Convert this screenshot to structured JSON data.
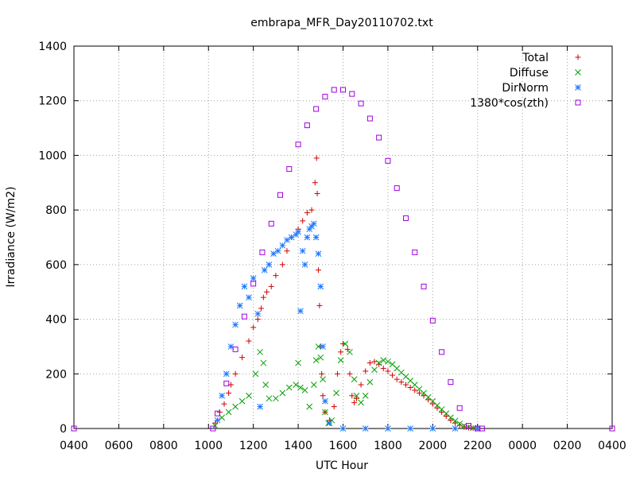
{
  "chart_data": {
    "type": "scatter",
    "title": "embrapa_MFR_Day20110702.txt",
    "xlabel": "UTC Hour",
    "ylabel": "Irradiance (W/m2)",
    "xlim": [
      4,
      28
    ],
    "ylim": [
      0,
      1400
    ],
    "x_ticks": [
      {
        "value": 4,
        "label": "0400"
      },
      {
        "value": 6,
        "label": "0600"
      },
      {
        "value": 8,
        "label": "0800"
      },
      {
        "value": 10,
        "label": "1000"
      },
      {
        "value": 12,
        "label": "1200"
      },
      {
        "value": 14,
        "label": "1400"
      },
      {
        "value": 16,
        "label": "1600"
      },
      {
        "value": 18,
        "label": "1800"
      },
      {
        "value": 20,
        "label": "2000"
      },
      {
        "value": 22,
        "label": "2200"
      },
      {
        "value": 24,
        "label": "0000"
      },
      {
        "value": 26,
        "label": "0200"
      },
      {
        "value": 28,
        "label": "0400"
      }
    ],
    "y_ticks": [
      0,
      200,
      400,
      600,
      800,
      1000,
      1200,
      1400
    ],
    "grid": true,
    "legend_position": "top-right",
    "series": [
      {
        "name": "Total",
        "color": "#d40000",
        "marker": "plus",
        "x": [
          10.3,
          10.5,
          10.7,
          10.9,
          11.0,
          11.2,
          11.5,
          11.8,
          12.0,
          12.2,
          12.35,
          12.45,
          12.6,
          12.8,
          13.0,
          13.3,
          13.5,
          13.7,
          14.0,
          14.2,
          14.4,
          14.6,
          14.75,
          14.82,
          14.85,
          14.9,
          14.95,
          15.0,
          15.05,
          15.1,
          15.2,
          15.4,
          15.6,
          15.75,
          15.9,
          16.0,
          16.2,
          16.3,
          16.4,
          16.5,
          16.6,
          16.8,
          17.0,
          17.2,
          17.4,
          17.6,
          17.8,
          18.0,
          18.2,
          18.4,
          18.6,
          18.8,
          19.0,
          19.2,
          19.4,
          19.6,
          19.8,
          20.0,
          20.2,
          20.4,
          20.6,
          20.8,
          21.0,
          21.2,
          21.4,
          21.6,
          21.8,
          22.0
        ],
        "y": [
          20,
          60,
          90,
          130,
          160,
          200,
          260,
          320,
          370,
          400,
          440,
          480,
          500,
          520,
          560,
          600,
          650,
          700,
          730,
          760,
          790,
          800,
          900,
          990,
          860,
          580,
          450,
          300,
          200,
          120,
          60,
          30,
          80,
          200,
          280,
          310,
          290,
          200,
          120,
          95,
          110,
          160,
          210,
          240,
          245,
          235,
          220,
          210,
          195,
          180,
          170,
          160,
          150,
          140,
          130,
          120,
          105,
          90,
          75,
          60,
          45,
          30,
          20,
          12,
          6,
          3,
          1,
          0
        ]
      },
      {
        "name": "Diffuse",
        "color": "#00a000",
        "marker": "cross",
        "x": [
          10.3,
          10.6,
          10.9,
          11.2,
          11.5,
          11.8,
          12.1,
          12.3,
          12.45,
          12.55,
          12.7,
          13.0,
          13.3,
          13.6,
          13.9,
          14.0,
          14.1,
          14.3,
          14.5,
          14.7,
          14.8,
          14.9,
          15.0,
          15.1,
          15.2,
          15.35,
          15.5,
          15.7,
          15.9,
          16.1,
          16.3,
          16.5,
          16.6,
          16.8,
          17.0,
          17.2,
          17.4,
          17.6,
          17.8,
          18.0,
          18.2,
          18.4,
          18.6,
          18.8,
          19.0,
          19.2,
          19.4,
          19.6,
          19.8,
          20.0,
          20.2,
          20.4,
          20.6,
          20.8,
          21.0,
          21.2,
          21.4,
          21.6,
          21.8,
          22.0
        ],
        "y": [
          10,
          40,
          60,
          80,
          100,
          120,
          200,
          280,
          240,
          160,
          110,
          110,
          130,
          150,
          160,
          240,
          150,
          140,
          80,
          160,
          250,
          300,
          260,
          180,
          60,
          20,
          30,
          130,
          250,
          310,
          280,
          180,
          120,
          95,
          120,
          170,
          215,
          240,
          250,
          245,
          235,
          220,
          205,
          190,
          175,
          160,
          145,
          130,
          115,
          100,
          85,
          70,
          55,
          40,
          28,
          18,
          10,
          5,
          2,
          0
        ]
      },
      {
        "name": "DirNorm",
        "color": "#1e78ff",
        "marker": "star",
        "x": [
          10.4,
          10.6,
          10.8,
          11.0,
          11.2,
          11.4,
          11.6,
          11.8,
          12.0,
          12.2,
          12.3,
          12.5,
          12.7,
          12.9,
          13.1,
          13.3,
          13.5,
          13.7,
          13.9,
          14.0,
          14.1,
          14.2,
          14.3,
          14.4,
          14.5,
          14.6,
          14.7,
          14.8,
          14.9,
          15.0,
          15.1,
          15.2,
          15.4,
          16.0,
          17.0,
          18.0,
          19.0,
          20.0,
          21.0,
          22.0
        ],
        "y": [
          30,
          120,
          200,
          300,
          380,
          450,
          520,
          480,
          550,
          420,
          80,
          580,
          600,
          640,
          650,
          670,
          690,
          700,
          710,
          720,
          430,
          650,
          600,
          700,
          730,
          740,
          750,
          700,
          640,
          520,
          300,
          100,
          20,
          0,
          0,
          0,
          0,
          0,
          0,
          0
        ]
      },
      {
        "name": "1380*cos(zth)",
        "color": "#a000e0",
        "marker": "square",
        "x": [
          4,
          10.2,
          10.4,
          10.8,
          11.2,
          11.6,
          12.0,
          12.4,
          12.8,
          13.2,
          13.6,
          14.0,
          14.4,
          14.8,
          15.2,
          15.6,
          16.0,
          16.4,
          16.8,
          17.2,
          17.6,
          18.0,
          18.4,
          18.8,
          19.2,
          19.6,
          20.0,
          20.4,
          20.8,
          21.2,
          21.6,
          22.0,
          22.2,
          28
        ],
        "y": [
          0,
          0,
          55,
          165,
          290,
          410,
          530,
          645,
          750,
          855,
          950,
          1040,
          1110,
          1170,
          1215,
          1240,
          1240,
          1225,
          1190,
          1135,
          1065,
          980,
          880,
          770,
          645,
          520,
          395,
          280,
          170,
          75,
          10,
          0,
          0,
          0
        ]
      }
    ]
  }
}
